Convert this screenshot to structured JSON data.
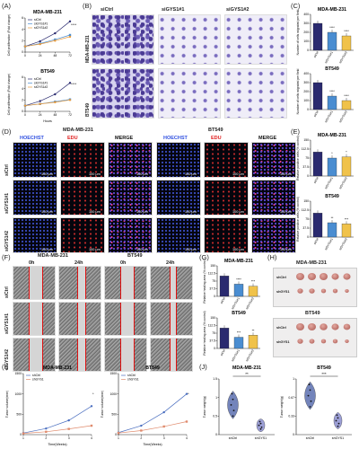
{
  "panels": {
    "A": {
      "letter": "(A)",
      "title1": "MDA-MB-231",
      "title2": "BT549",
      "xlabel": "Hours",
      "ylabel": "Cell proliferation (Fold change)",
      "legend": [
        "siCtrl",
        "siGYS1#1",
        "siGYS1#2"
      ],
      "sig": "****"
    },
    "B": {
      "letter": "(B)",
      "cols": [
        "siCtrl",
        "siGYS1#1",
        "siGYS1#2"
      ],
      "rows": [
        "MDA-MB-231",
        "BT549"
      ]
    },
    "C": {
      "letter": "(C)",
      "title1": "MDA-MB-231",
      "title2": "BT549",
      "ylabel": "Number of cells migrated per field",
      "xticks": [
        "siCtrl",
        "siGYS1#1",
        "siGYS1#2"
      ],
      "sig1": [
        "",
        "****",
        "****"
      ],
      "sig2": [
        "",
        "****",
        "****"
      ]
    },
    "D": {
      "letter": "(D)",
      "groups": [
        "MDA-MB-231",
        "BT549"
      ],
      "channels": [
        "HOECHST",
        "EDU",
        "MERGE"
      ],
      "rows": [
        "siCtrl",
        "siGYS1#1",
        "siGYS1#2"
      ],
      "scale": "100 μm"
    },
    "E": {
      "letter": "(E)",
      "title1": "MDA-MB-231",
      "title2": "BT549",
      "ylabel": "Relative positive cells (% control)",
      "xticks": [
        "siCtrl",
        "siGYS1#1",
        "siGYS1#2"
      ],
      "sig1": [
        "",
        "*",
        "*"
      ],
      "sig2": [
        "",
        "**",
        "***"
      ]
    },
    "F": {
      "letter": "(F)",
      "groups": [
        "MDA-MB-231",
        "BT549"
      ],
      "times": [
        "0h",
        "24h",
        "0h",
        "24h"
      ],
      "rows": [
        "siCtrl",
        "siGYS1#1",
        "siGYS1#2"
      ]
    },
    "G": {
      "letter": "(G)",
      "title1": "MDA-MB-231",
      "title2": "BT549",
      "ylabel": "Relative healing area (% control)",
      "xticks": [
        "siCtrl",
        "siGYS1#1",
        "siGYS1#2"
      ],
      "sig1": [
        "",
        "****",
        "***"
      ],
      "sig2": [
        "",
        "***",
        "**"
      ]
    },
    "H": {
      "letter": "(H)",
      "title1": "MDA-MB-231",
      "title2": "BT549",
      "rows": [
        "shCtrl",
        "shGYS1"
      ]
    },
    "I": {
      "letter": "(I)",
      "title1": "MDA-MB-231",
      "title2": "BT549",
      "xlabel": "Time(Weeks)",
      "ylabel": "Tumor volume(mm³)",
      "legend": [
        "shCtrl",
        "shGYS1"
      ],
      "sig1": "*",
      "sig2": "*"
    },
    "J": {
      "letter": "(J)",
      "title1": "MDA-MB-231",
      "title2": "BT549",
      "ylabel": "Tumor weight(g)",
      "xticks": [
        "shCtrl",
        "shGYS1"
      ],
      "sig1": "**",
      "sig2": "***"
    }
  },
  "chart_data": [
    {
      "panel": "A1",
      "type": "line",
      "x": [
        0,
        24,
        48,
        72
      ],
      "series": [
        {
          "name": "siCtrl",
          "values": [
            1,
            1.9,
            3.3,
            5.4
          ]
        },
        {
          "name": "siGYS1#1",
          "values": [
            1,
            1.5,
            2.2,
            3.0
          ]
        },
        {
          "name": "siGYS1#2",
          "values": [
            1,
            1.4,
            2.0,
            2.7
          ]
        }
      ],
      "ylim": [
        0,
        6
      ]
    },
    {
      "panel": "A2",
      "type": "line",
      "x": [
        0,
        24,
        48,
        72
      ],
      "series": [
        {
          "name": "siCtrl",
          "values": [
            1,
            1.8,
            3.0,
            5.0
          ]
        },
        {
          "name": "siGYS1#1",
          "values": [
            1,
            1.3,
            1.7,
            2.1
          ]
        },
        {
          "name": "siGYS1#2",
          "values": [
            1,
            1.3,
            1.6,
            2.0
          ]
        }
      ],
      "ylim": [
        0,
        6
      ]
    },
    {
      "panel": "C1",
      "type": "bar",
      "categories": [
        "siCtrl",
        "siGYS1#1",
        "siGYS1#2"
      ],
      "values": [
        300,
        200,
        160
      ],
      "ylim": [
        0,
        400
      ]
    },
    {
      "panel": "C2",
      "type": "bar",
      "categories": [
        "siCtrl",
        "siGYS1#1",
        "siGYS1#2"
      ],
      "values": [
        300,
        150,
        100
      ],
      "ylim": [
        0,
        400
      ]
    },
    {
      "panel": "E1",
      "type": "bar",
      "categories": [
        "siCtrl",
        "siGYS1#1",
        "siGYS1#2"
      ],
      "values": [
        100,
        75,
        80
      ],
      "ylim": [
        0,
        150
      ]
    },
    {
      "panel": "E2",
      "type": "bar",
      "categories": [
        "siCtrl",
        "siGYS1#1",
        "siGYS1#2"
      ],
      "values": [
        100,
        60,
        55
      ],
      "ylim": [
        0,
        150
      ]
    },
    {
      "panel": "G1",
      "type": "bar",
      "categories": [
        "siCtrl",
        "siGYS1#1",
        "siGYS1#2"
      ],
      "values": [
        100,
        60,
        50
      ],
      "ylim": [
        0,
        150
      ]
    },
    {
      "panel": "G2",
      "type": "bar",
      "categories": [
        "siCtrl",
        "siGYS1#1",
        "siGYS1#2"
      ],
      "values": [
        100,
        55,
        65
      ],
      "ylim": [
        0,
        150
      ]
    },
    {
      "panel": "I1",
      "type": "line",
      "x": [
        1,
        2,
        3,
        4
      ],
      "series": [
        {
          "name": "shCtrl",
          "values": [
            40,
            150,
            350,
            700
          ]
        },
        {
          "name": "shGYS1",
          "values": [
            30,
            70,
            140,
            220
          ]
        }
      ],
      "ylim": [
        0,
        1500
      ]
    },
    {
      "panel": "I2",
      "type": "line",
      "x": [
        1,
        2,
        3,
        4
      ],
      "series": [
        {
          "name": "shCtrl",
          "values": [
            50,
            220,
            550,
            1000
          ]
        },
        {
          "name": "shGYS1",
          "values": [
            40,
            100,
            200,
            320
          ]
        }
      ],
      "ylim": [
        0,
        1500
      ]
    },
    {
      "panel": "J1",
      "type": "scatter",
      "categories": [
        "shCtrl",
        "shGYS1"
      ],
      "series": [
        {
          "name": "shCtrl",
          "values": [
            0.5,
            0.65,
            0.8,
            0.95,
            1.1
          ]
        },
        {
          "name": "shGYS1",
          "values": [
            0.15,
            0.2,
            0.25,
            0.3,
            0.35
          ]
        }
      ],
      "ylim": [
        0,
        1.5
      ]
    },
    {
      "panel": "J2",
      "type": "scatter",
      "categories": [
        "shCtrl",
        "shGYS1"
      ],
      "series": [
        {
          "name": "shCtrl",
          "values": [
            0.5,
            0.6,
            0.7,
            0.8,
            0.9
          ]
        },
        {
          "name": "shGYS1",
          "values": [
            0.15,
            0.2,
            0.25,
            0.3,
            0.35
          ]
        }
      ],
      "ylim": [
        0,
        1.0
      ]
    }
  ],
  "colors": {
    "ctrl": "#2a2a6f",
    "kd1": "#4a8dd1",
    "kd2": "#f0c24a",
    "shctrl": "#4b6fc0",
    "shgys": "#e08b6d",
    "violin1": "#5b6fb0",
    "violin2": "#8b8fd0"
  }
}
